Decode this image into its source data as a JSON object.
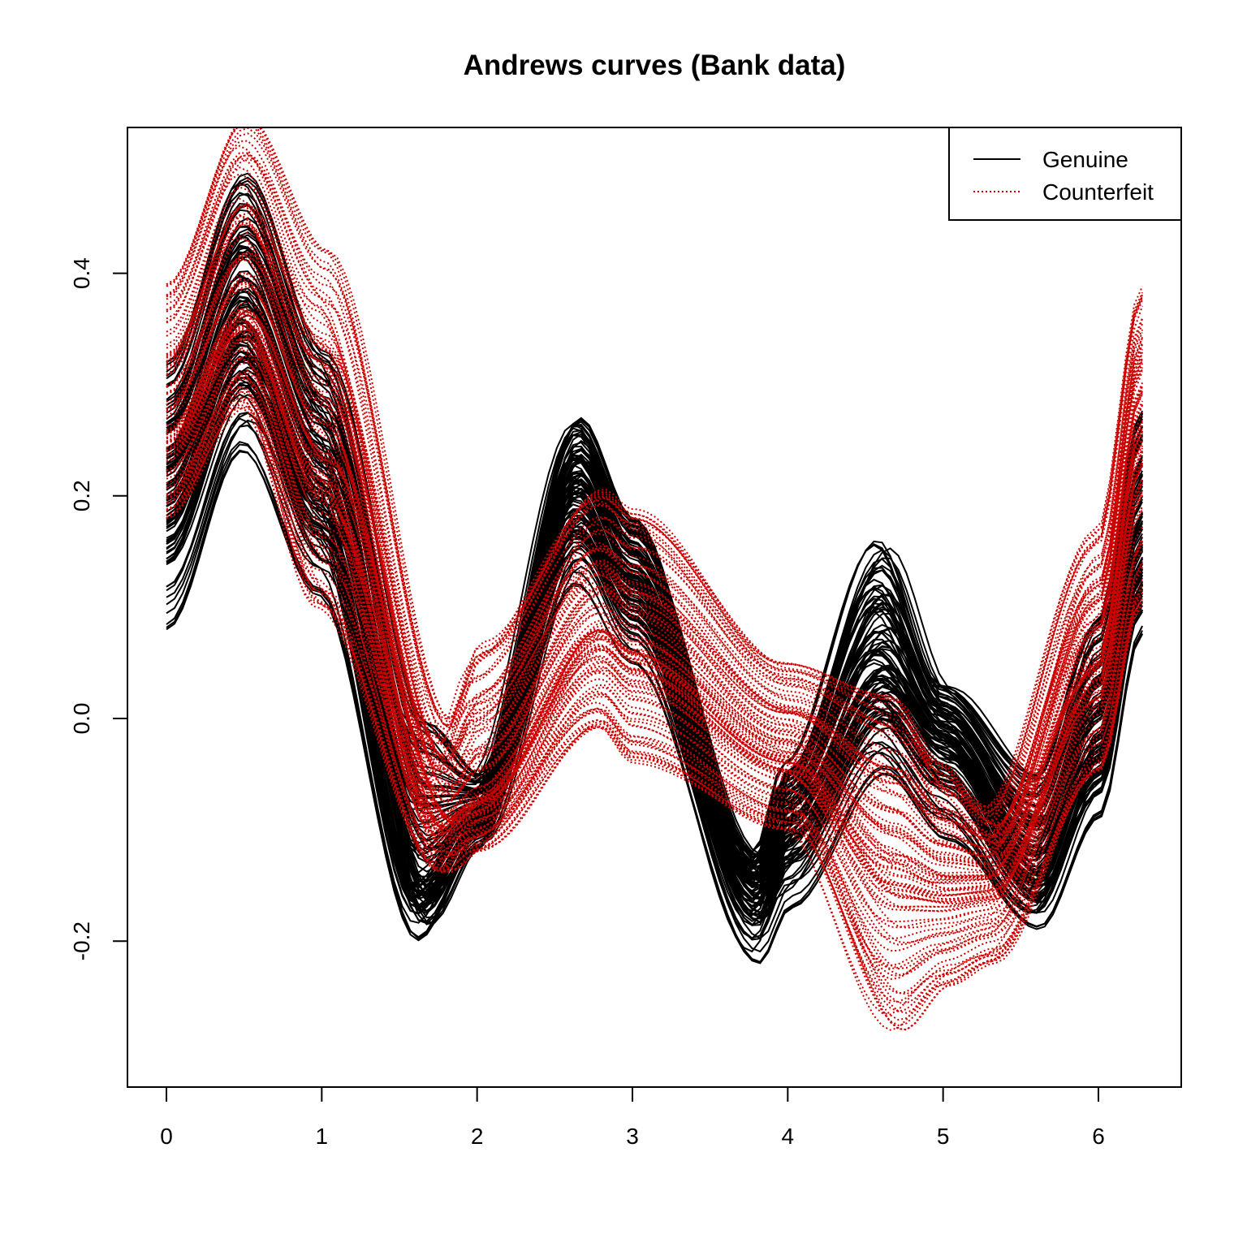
{
  "chart_data": {
    "type": "line",
    "title": "Andrews curves (Bank data)",
    "xlabel": "",
    "ylabel": "",
    "xlim": [
      -0.25,
      6.53
    ],
    "ylim": [
      -0.33,
      0.535
    ],
    "x_ticks": [
      "0",
      "1",
      "2",
      "3",
      "4",
      "5",
      "6"
    ],
    "y_ticks": [
      "-0.2",
      "0.0",
      "0.2",
      "0.4"
    ],
    "x_range": [
      0,
      6.283
    ],
    "grid": false,
    "legend": {
      "position": "top-right",
      "entries": [
        {
          "label": "Genuine",
          "color": "#000000",
          "style": "solid"
        },
        {
          "label": "Counterfeit",
          "color": "#CD0000",
          "style": "dotted"
        }
      ]
    },
    "series": [
      {
        "name": "Genuine",
        "color": "#000000",
        "count": 100,
        "x": [
          0,
          0.5,
          1.0,
          1.65,
          2.0,
          2.65,
          3.0,
          3.8,
          4.0,
          4.6,
          5.0,
          5.6,
          6.0,
          6.28
        ],
        "y": [
          0.2,
          0.35,
          0.21,
          -0.15,
          -0.09,
          0.2,
          0.12,
          -0.15,
          -0.09,
          0.04,
          -0.02,
          -0.14,
          -0.02,
          0.15
        ],
        "y_min": [
          0.08,
          0.24,
          0.11,
          -0.2,
          -0.12,
          0.12,
          0.05,
          -0.22,
          -0.17,
          -0.05,
          -0.11,
          -0.19,
          -0.09,
          0.075
        ],
        "y_max": [
          0.32,
          0.49,
          0.33,
          -0.0,
          -0.05,
          0.27,
          0.18,
          -0.12,
          -0.04,
          0.16,
          0.03,
          -0.05,
          0.09,
          0.28
        ]
      },
      {
        "name": "Counterfeit",
        "color": "#CD0000",
        "count": 100,
        "x": [
          0,
          0.5,
          1.0,
          1.8,
          2.0,
          2.8,
          3.0,
          4.0,
          4.7,
          5.0,
          5.3,
          6.0,
          6.28
        ],
        "y": [
          0.26,
          0.37,
          0.24,
          -0.09,
          -0.07,
          0.08,
          0.06,
          -0.03,
          -0.12,
          -0.14,
          -0.14,
          0.05,
          0.26
        ],
        "y_min": [
          0.18,
          0.28,
          0.1,
          -0.14,
          -0.12,
          -0.01,
          -0.04,
          -0.1,
          -0.28,
          -0.24,
          -0.22,
          -0.05,
          0.1
        ],
        "y_max": [
          0.39,
          0.54,
          0.42,
          -0.0,
          0.07,
          0.21,
          0.19,
          0.05,
          0.02,
          -0.04,
          -0.08,
          0.17,
          0.39
        ]
      }
    ]
  }
}
